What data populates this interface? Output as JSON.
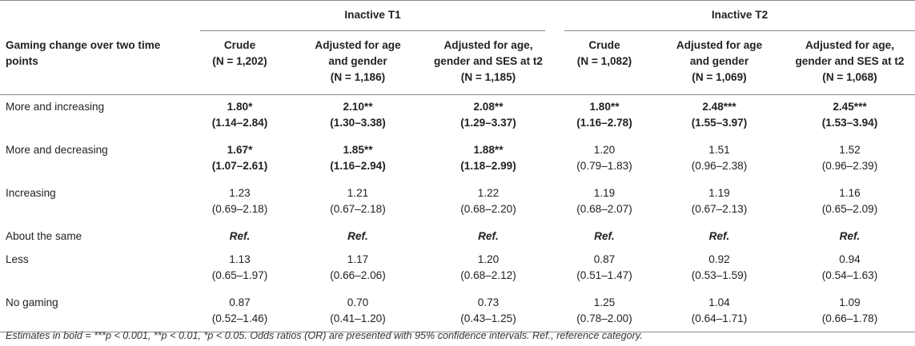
{
  "groups": [
    "Inactive T1",
    "Inactive T2"
  ],
  "row_header": "Gaming change over two time points",
  "columns": [
    {
      "l1": "Crude",
      "l2": "(N = 1,202)"
    },
    {
      "l1": "Adjusted for age",
      "l2": "and gender",
      "l3": "(N = 1,186)"
    },
    {
      "l1": "Adjusted for age,",
      "l2": "gender and SES at t2",
      "l3": "(N = 1,185)"
    },
    {
      "l1": "Crude",
      "l2": "(N = 1,082)"
    },
    {
      "l1": "Adjusted for age",
      "l2": "and gender",
      "l3": "(N = 1,069)"
    },
    {
      "l1": "Adjusted for age,",
      "l2": "gender and SES at t2",
      "l3": "(N = 1,068)"
    }
  ],
  "rows": [
    {
      "label": "More and increasing",
      "cells": [
        {
          "est": "1.80*",
          "ci": "(1.14–2.84)",
          "bold": true
        },
        {
          "est": "2.10**",
          "ci": "(1.30–3.38)",
          "bold": true
        },
        {
          "est": "2.08**",
          "ci": "(1.29–3.37)",
          "bold": true
        },
        {
          "est": "1.80**",
          "ci": "(1.16–2.78)",
          "bold": true
        },
        {
          "est": "2.48***",
          "ci": "(1.55–3.97)",
          "bold": true
        },
        {
          "est": "2.45***",
          "ci": "(1.53–3.94)",
          "bold": true
        }
      ]
    },
    {
      "label": "More and decreasing",
      "cells": [
        {
          "est": "1.67*",
          "ci": "(1.07–2.61)",
          "bold": true
        },
        {
          "est": "1.85**",
          "ci": "(1.16–2.94)",
          "bold": true
        },
        {
          "est": "1.88**",
          "ci": "(1.18–2.99)",
          "bold": true
        },
        {
          "est": "1.20",
          "ci": "(0.79–1.83)",
          "bold": false
        },
        {
          "est": "1.51",
          "ci": "(0.96–2.38)",
          "bold": false
        },
        {
          "est": "1.52",
          "ci": "(0.96–2.39)",
          "bold": false
        }
      ]
    },
    {
      "label": "Increasing",
      "cells": [
        {
          "est": "1.23",
          "ci": "(0.69–2.18)",
          "bold": false
        },
        {
          "est": "1.21",
          "ci": "(0.67–2.18)",
          "bold": false
        },
        {
          "est": "1.22",
          "ci": "(0.68–2.20)",
          "bold": false
        },
        {
          "est": "1.19",
          "ci": "(0.68–2.07)",
          "bold": false
        },
        {
          "est": "1.19",
          "ci": "(0.67–2.13)",
          "bold": false
        },
        {
          "est": "1.16",
          "ci": "(0.65–2.09)",
          "bold": false
        }
      ]
    },
    {
      "label": "About the same",
      "ref": "Ref."
    },
    {
      "label": "Less",
      "cells": [
        {
          "est": "1.13",
          "ci": "(0.65–1.97)",
          "bold": false
        },
        {
          "est": "1.17",
          "ci": "(0.66–2.06)",
          "bold": false
        },
        {
          "est": "1.20",
          "ci": "(0.68–2.12)",
          "bold": false
        },
        {
          "est": "0.87",
          "ci": "(0.51–1.47)",
          "bold": false
        },
        {
          "est": "0.92",
          "ci": "(0.53–1.59)",
          "bold": false
        },
        {
          "est": "0.94",
          "ci": "(0.54–1.63)",
          "bold": false
        }
      ]
    },
    {
      "label": "No gaming",
      "cells": [
        {
          "est": "0.87",
          "ci": "(0.52–1.46)",
          "bold": false
        },
        {
          "est": "0.70",
          "ci": "(0.41–1.20)",
          "bold": false
        },
        {
          "est": "0.73",
          "ci": "(0.43–1.25)",
          "bold": false
        },
        {
          "est": "1.25",
          "ci": "(0.78–2.00)",
          "bold": false
        },
        {
          "est": "1.04",
          "ci": "(0.64–1.71)",
          "bold": false
        },
        {
          "est": "1.09",
          "ci": "(0.66–1.78)",
          "bold": false
        }
      ]
    }
  ],
  "footnote": "Estimates in bold = ***p < 0.001, **p < 0.01, *p < 0.05. Odds ratios (OR) are presented with 95% confidence intervals. Ref., reference category."
}
